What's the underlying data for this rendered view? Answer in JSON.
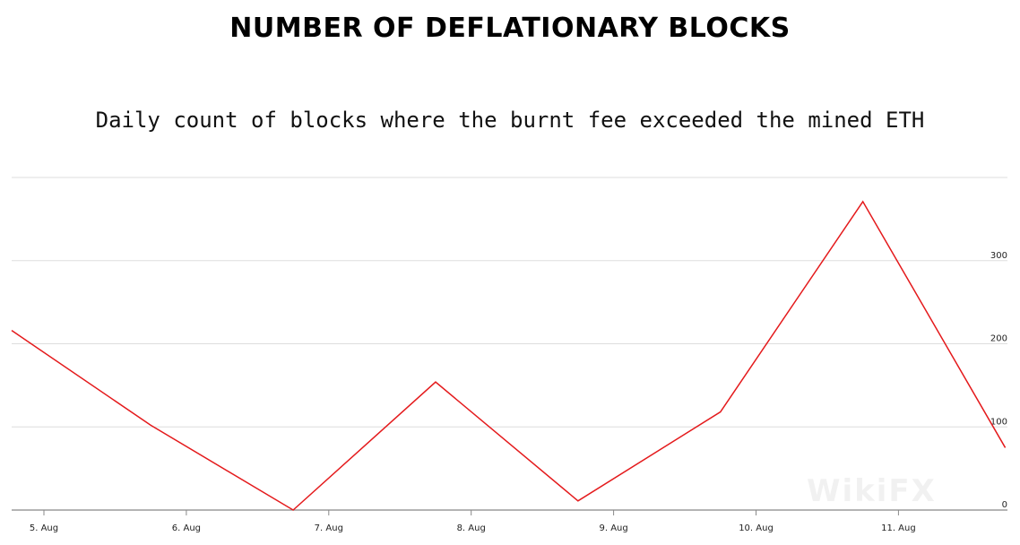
{
  "title": "NUMBER OF DEFLATIONARY BLOCKS",
  "subtitle": "Daily count of blocks where the burnt fee exceeded the mined ETH",
  "watermark": "WikiFX",
  "colors": {
    "line": "#e41a1c",
    "grid": "#dddddd",
    "axis": "#888888"
  },
  "chart_data": {
    "type": "line",
    "title": "NUMBER OF DEFLATIONARY BLOCKS",
    "subtitle": "Daily count of blocks where the burnt fee exceeded the mined ETH",
    "xlabel": "",
    "ylabel": "",
    "x_tick_labels": [
      "5. Aug",
      "6. Aug",
      "7. Aug",
      "8. Aug",
      "9. Aug",
      "10. Aug",
      "11. Aug"
    ],
    "y_tick_labels": [
      "0",
      "100",
      "200",
      "300"
    ],
    "ylim": [
      0,
      400
    ],
    "y_axis_side": "right",
    "grid": true,
    "legend": "none",
    "series": [
      {
        "x": [
          "4. Aug 18:00",
          "5. Aug 18:00",
          "6. Aug 18:00",
          "7. Aug 18:00",
          "8. Aug 18:00",
          "9. Aug 18:00",
          "10. Aug 18:00",
          "11. Aug 18:00"
        ],
        "values": [
          216,
          102,
          0,
          154,
          11,
          118,
          371,
          75
        ]
      }
    ]
  }
}
